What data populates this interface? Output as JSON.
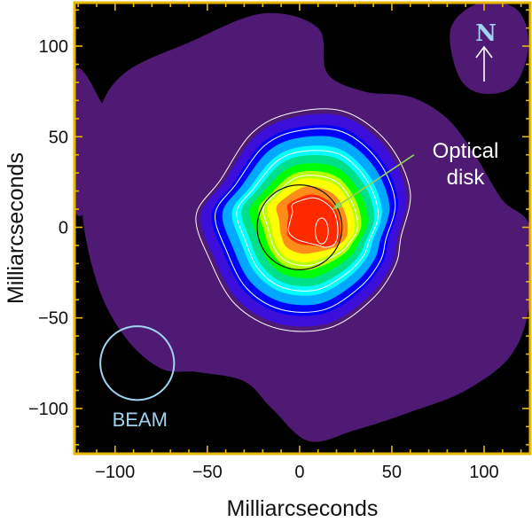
{
  "chart_data": {
    "type": "heatmap",
    "title": "",
    "xlabel": "Milliarcseconds",
    "ylabel": "Milliarcseconds",
    "xlim": [
      -122,
      125
    ],
    "ylim": [
      -125,
      124
    ],
    "x_ticks": [
      -100,
      -50,
      0,
      50,
      100
    ],
    "y_ticks": [
      -100,
      -50,
      0,
      50,
      100
    ],
    "x_tick_labels": [
      "−100",
      "−50",
      "0",
      "50",
      "100"
    ],
    "y_tick_labels": [
      "−100",
      "−50",
      "0",
      "50",
      "100"
    ],
    "colorscale": [
      "#000000",
      "#4e1a73",
      "#0000ff",
      "#00a8ff",
      "#00ffff",
      "#00ff00",
      "#ffff00",
      "#ff8c1a",
      "#ff2a00"
    ],
    "frame_color": "#e8b800",
    "emission_peak": {
      "x": 12,
      "y": -2
    },
    "optical_disk": {
      "center_x": 0,
      "center_y": 0,
      "radius": 23,
      "label": "Optical\ndisk",
      "label_line1": "Optical",
      "label_line2": "disk",
      "arrow_from": [
        62,
        40
      ],
      "arrow_to": [
        18,
        10
      ]
    },
    "beam": {
      "center_x": -88,
      "center_y": -75,
      "radius": 20,
      "label": "BEAM",
      "color": "#9fd3ef"
    },
    "north_indicator": {
      "label": "N",
      "color": "#9fd3ef",
      "x": 100,
      "y": 101
    }
  }
}
